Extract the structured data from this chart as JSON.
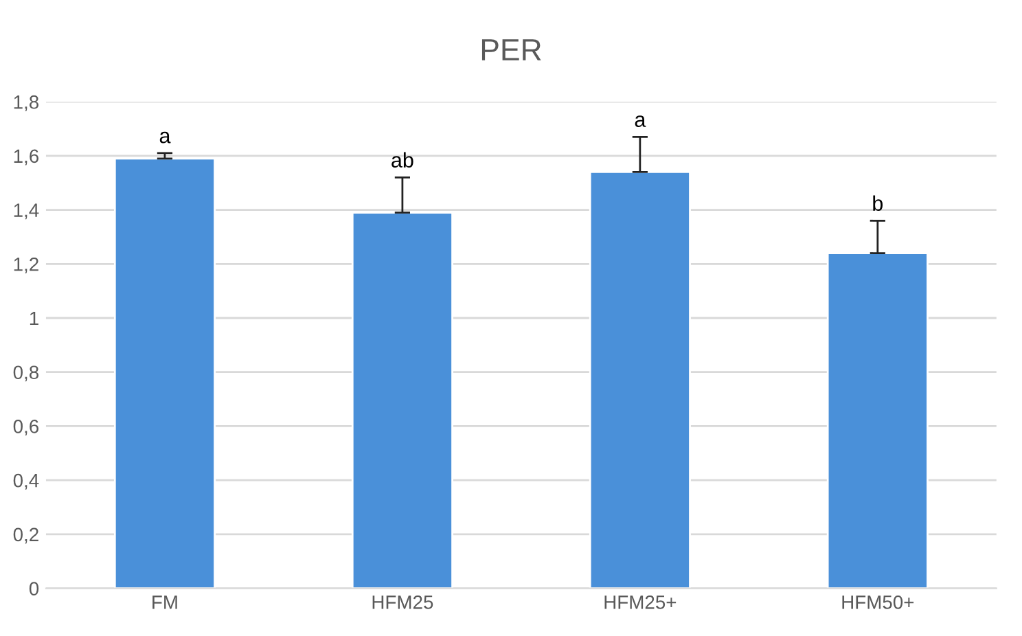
{
  "chart_data": {
    "type": "bar",
    "title": "PER",
    "categories": [
      "FM",
      "HFM25",
      "HFM25+",
      "HFM50+"
    ],
    "values": [
      1.59,
      1.39,
      1.54,
      1.24
    ],
    "errors": [
      [
        1.59,
        1.61
      ],
      [
        1.39,
        1.52
      ],
      [
        1.54,
        1.67
      ],
      [
        1.24,
        1.36
      ]
    ],
    "color": "#4a90d9",
    "ylim": [
      0,
      1.8
    ],
    "yticks": [
      0,
      {
        "value": 0.2,
        "label": "0,2"
      },
      {
        "value": 0.4,
        "label": "0,4"
      },
      {
        "value": 0.6,
        "label": "0,6"
      },
      {
        "value": 0.8,
        "label": "0,8"
      },
      1,
      {
        "value": 1.2,
        "label": "1,2"
      },
      {
        "value": 1.4,
        "label": "1,4"
      },
      {
        "value": 1.6,
        "label": "1,6"
      },
      {
        "value": 1.8,
        "label": "1,8"
      }
    ],
    "grid": "y",
    "annotations": [
      {
        "text": "a",
        "x": "FM",
        "y": 1.61
      },
      {
        "text": "ab",
        "x": "HFM25",
        "y": 1.52
      },
      {
        "text": "a",
        "x": "HFM25+",
        "y": 1.67
      },
      {
        "text": "b",
        "x": "HFM50+",
        "y": 1.36
      }
    ]
  }
}
